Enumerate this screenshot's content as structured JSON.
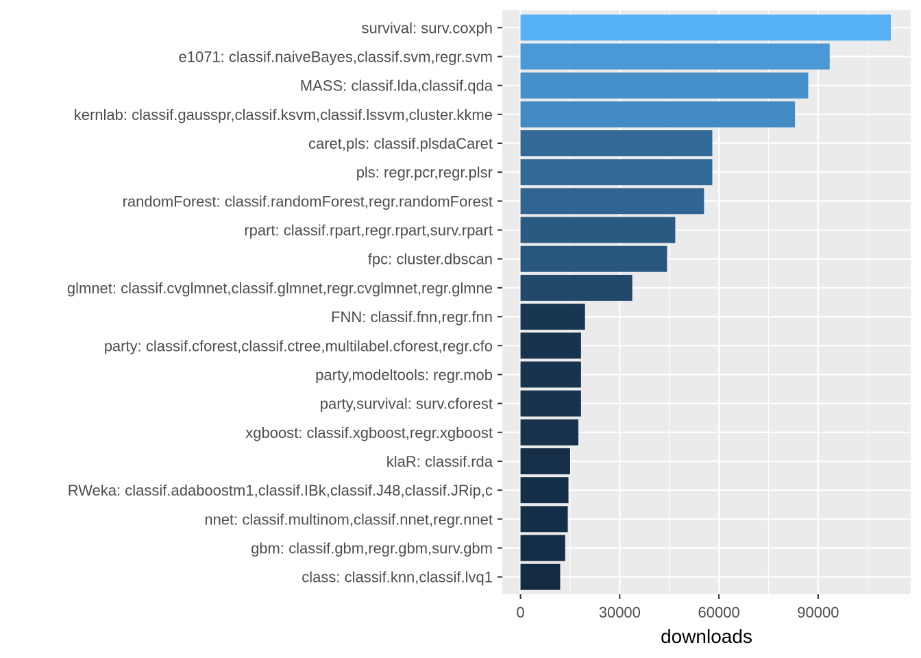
{
  "chart_data": {
    "type": "bar",
    "orientation": "horizontal",
    "categories": [
      "survival: surv.coxph",
      "e1071: classif.naiveBayes,classif.svm,regr.svm",
      "MASS: classif.lda,classif.qda",
      "kernlab: classif.gausspr,classif.ksvm,classif.lssvm,cluster.kkme",
      "caret,pls: classif.plsdaCaret",
      "pls: regr.pcr,regr.plsr",
      "randomForest: classif.randomForest,regr.randomForest",
      "rpart: classif.rpart,regr.rpart,surv.rpart",
      "fpc: cluster.dbscan",
      "glmnet: classif.cvglmnet,classif.glmnet,regr.cvglmnet,regr.glmne",
      "FNN: classif.fnn,regr.fnn",
      "party: classif.cforest,classif.ctree,multilabel.cforest,regr.cfo",
      "party,modeltools: regr.mob",
      "party,survival: surv.cforest",
      "xgboost: classif.xgboost,regr.xgboost",
      "klaR: classif.rda",
      "RWeka: classif.adaboostm1,classif.IBk,classif.J48,classif.JRip,c",
      "nnet: classif.multinom,classif.nnet,regr.nnet",
      "gbm: classif.gbm,regr.gbm,surv.gbm",
      "class: classif.knn,classif.lvq1"
    ],
    "values": [
      112000,
      93500,
      87000,
      83000,
      58000,
      58000,
      55500,
      46800,
      44300,
      33800,
      19500,
      18300,
      18300,
      18300,
      17500,
      15000,
      14500,
      14300,
      13500,
      12000
    ],
    "xlabel": "downloads",
    "ylabel": "",
    "xlim": [
      -5500,
      118000
    ],
    "xticks": [
      0,
      30000,
      60000,
      90000
    ],
    "xtick_labels": [
      "0",
      "30000",
      "60000",
      "90000"
    ],
    "grid": true,
    "color_low": "#132B43",
    "color_high": "#56B1F7",
    "panel_background": "#EBEBEB",
    "grid_color": "#FFFFFF"
  }
}
